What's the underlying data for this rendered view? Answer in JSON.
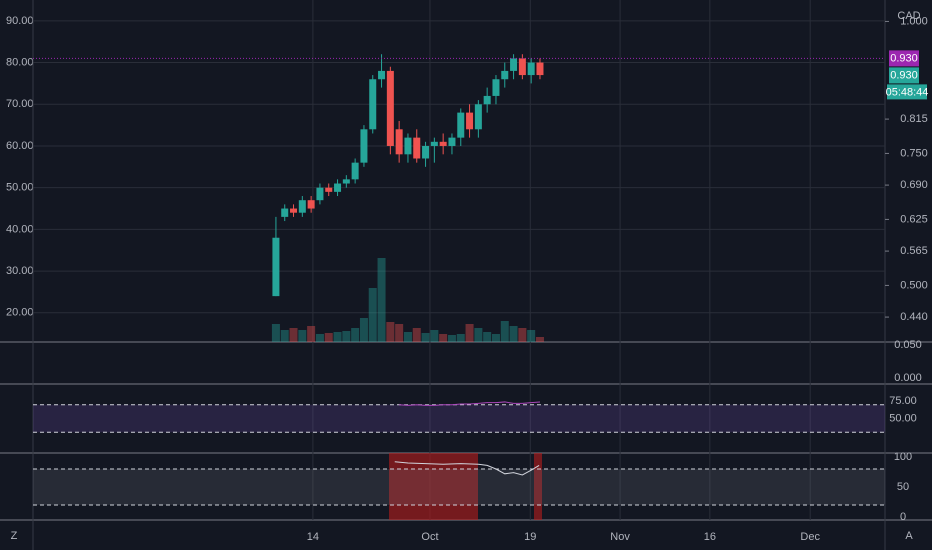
{
  "chart_data": {
    "type": "candlestick",
    "currency": "CAD",
    "open": [
      24,
      43,
      45,
      44,
      47,
      47,
      50,
      49,
      51,
      52,
      56,
      64,
      76,
      78,
      64,
      58,
      62,
      57,
      60,
      61,
      60,
      62,
      68,
      64,
      70,
      72,
      76,
      78,
      81,
      77,
      80
    ],
    "high": [
      43,
      46,
      46,
      48,
      48,
      51,
      51,
      52,
      53,
      57,
      65,
      77,
      82,
      79,
      66,
      63,
      64,
      61,
      62,
      63,
      63,
      69,
      70,
      71,
      74,
      77,
      80,
      82,
      82,
      81,
      81
    ],
    "low": [
      24,
      42,
      43,
      43,
      44,
      46,
      48,
      48,
      50,
      51,
      55,
      63,
      74,
      58,
      56,
      56,
      56,
      55,
      56,
      58,
      58,
      60,
      62,
      62,
      68,
      70,
      74,
      76,
      76,
      75,
      76
    ],
    "close": [
      38,
      45,
      44,
      47,
      45,
      50,
      49,
      51,
      52,
      56,
      64,
      76,
      78,
      60,
      58,
      62,
      57,
      60,
      61,
      60,
      62,
      68,
      64,
      70,
      72,
      76,
      78,
      81,
      77,
      80,
      77
    ],
    "volume": [
      18,
      12,
      14,
      12,
      16,
      8,
      9,
      10,
      11,
      14,
      24,
      54,
      84,
      20,
      18,
      10,
      14,
      9,
      12,
      8,
      7,
      8,
      18,
      14,
      10,
      8,
      21,
      16,
      14,
      12,
      5
    ],
    "up_color": "#26a69a",
    "down_color": "#ef5350",
    "xlim": [
      -27.6,
      69.2
    ],
    "xticks": [
      {
        "value": 4.2,
        "label": "14"
      },
      {
        "value": 17.5,
        "label": "Oct"
      },
      {
        "value": 28.9,
        "label": "19"
      },
      {
        "value": 39.1,
        "label": "Nov"
      },
      {
        "value": 49.3,
        "label": "16"
      },
      {
        "value": 60.7,
        "label": "Dec"
      }
    ],
    "ylim": [
      95,
      13
    ],
    "yticks": [
      {
        "value": 90,
        "label": "90.00"
      },
      {
        "value": 80,
        "label": "80.00"
      },
      {
        "value": 70,
        "label": "70.00"
      },
      {
        "value": 60,
        "label": "60.00"
      },
      {
        "value": 50,
        "label": "50.00"
      },
      {
        "value": 40,
        "label": "40.00"
      },
      {
        "value": 30,
        "label": "30.00"
      },
      {
        "value": 20,
        "label": "20.00"
      }
    ],
    "y2lim": [
      1.0406,
      0.3928
    ],
    "y2ticks": [
      {
        "value": 1.0,
        "label": "1.000"
      },
      {
        "value": 0.815,
        "label": "0.815"
      },
      {
        "value": 0.75,
        "label": "0.750"
      },
      {
        "value": 0.69,
        "label": "0.690"
      },
      {
        "value": 0.625,
        "label": "0.625"
      },
      {
        "value": 0.565,
        "label": "0.565"
      },
      {
        "value": 0.5,
        "label": "0.500"
      },
      {
        "value": 0.44,
        "label": "0.440"
      }
    ],
    "price_labels": [
      {
        "value": 0.93,
        "label": "0.930",
        "color": "#9c27b0"
      },
      {
        "value": 0.93,
        "label": "0.930",
        "color": "#26a69a"
      }
    ],
    "countdown": "05:48:44",
    "volume_ticks": [
      {
        "value": 0.05,
        "label": "0.050"
      },
      {
        "value": 0,
        "label": "0.000"
      }
    ],
    "rsi": {
      "x": [
        14,
        15,
        16,
        17,
        18,
        19,
        20,
        21,
        22,
        23,
        24,
        25,
        26,
        27,
        28,
        29,
        30
      ],
      "values": [
        70,
        69,
        70,
        69,
        69,
        70,
        70,
        71,
        71,
        72,
        73,
        73,
        74,
        72,
        72,
        73,
        74
      ],
      "color": "#ab47bc",
      "ylim": [
        0,
        100
      ],
      "yticks": [
        {
          "value": 75,
          "label": "75.00"
        },
        {
          "value": 50,
          "label": "50.00"
        }
      ],
      "bands": [
        70,
        30
      ]
    },
    "stoch": {
      "x": [
        13.5,
        15,
        17,
        19,
        21,
        23,
        24,
        25,
        26,
        27,
        28,
        29,
        29.9
      ],
      "values": [
        92,
        90,
        89,
        88,
        89,
        88,
        86,
        80,
        72,
        74,
        70,
        78,
        86
      ],
      "color": "#d1d4dc",
      "ylim": [
        0,
        100
      ],
      "yticks": [
        100,
        50,
        0
      ],
      "bands": [
        80,
        20
      ]
    },
    "left_icon": "Z",
    "right_icon": "A"
  }
}
